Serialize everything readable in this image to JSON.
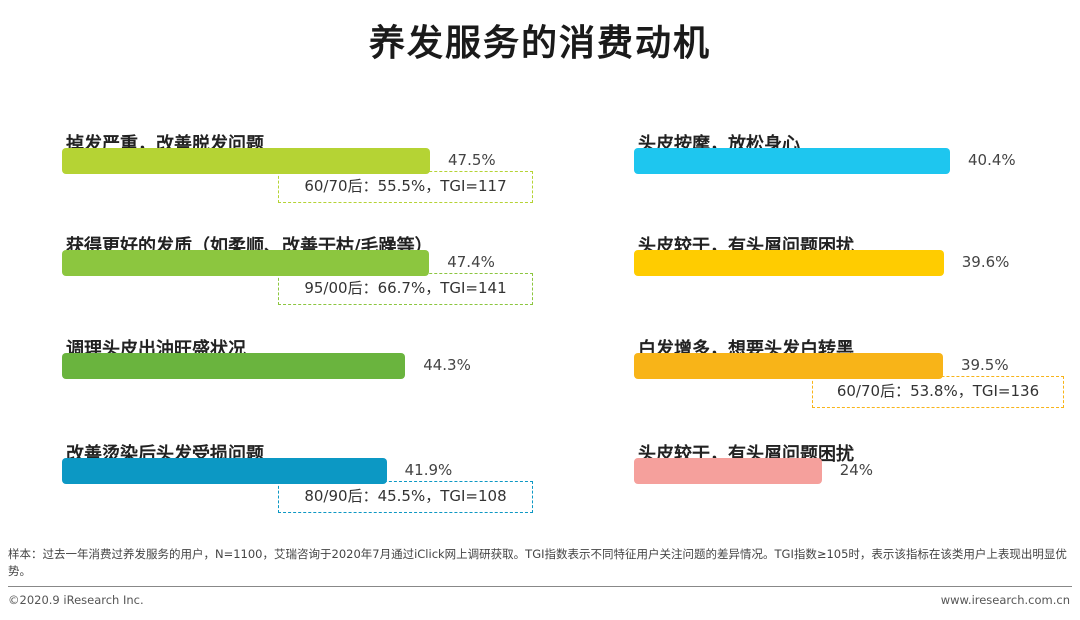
{
  "title": "养发服务的消费动机",
  "chart_data": {
    "type": "bar",
    "title": "养发服务的消费动机",
    "unit": "%",
    "xlim": [
      0,
      50
    ],
    "columns": [
      {
        "items": [
          {
            "label": "掉发严重，改善脱发问题",
            "value": 47.5,
            "value_label": "47.5%",
            "color": "#b5d334",
            "note": "60/70后：55.5%，TGI=117"
          },
          {
            "label": "获得更好的发质（如柔顺、改善干枯/毛躁等）",
            "value": 47.4,
            "value_label": "47.4%",
            "color": "#8cc63f",
            "note": "95/00后：66.7%，TGI=141"
          },
          {
            "label": "调理头皮出油旺盛状况",
            "value": 44.3,
            "value_label": "44.3%",
            "color": "#6ab43e",
            "note": ""
          },
          {
            "label": "改善烫染后头发受损问题",
            "value": 41.9,
            "value_label": "41.9%",
            "color": "#0c98c4",
            "note": "80/90后：45.5%，TGI=108"
          }
        ]
      },
      {
        "items": [
          {
            "label": "头皮按摩，放松身心",
            "value": 40.4,
            "value_label": "40.4%",
            "color": "#1ec6ef",
            "note": ""
          },
          {
            "label": "头皮较干，有头屑问题困扰",
            "value": 39.6,
            "value_label": "39.6%",
            "color": "#ffcc00",
            "note": ""
          },
          {
            "label": "白发增多，想要头发白转黑",
            "value": 39.5,
            "value_label": "39.5%",
            "color": "#f8b418",
            "note": "60/70后：53.8%，TGI=136"
          },
          {
            "label": "头皮较干，有头屑问题困扰",
            "value": 24,
            "value_label": "24%",
            "color": "#f5a09c",
            "note": ""
          }
        ]
      }
    ]
  },
  "footer": {
    "note": "样本：过去一年消费过养发服务的用户，N=1100，艾瑞咨询于2020年7月通过iClick网上调研获取。TGI指数表示不同特征用户关注问题的差异情况。TGI指数≥105时，表示该指标在该类用户上表现出明显优势。",
    "copyright": "©2020.9 iResearch Inc.",
    "website": "www.iresearch.com.cn"
  }
}
